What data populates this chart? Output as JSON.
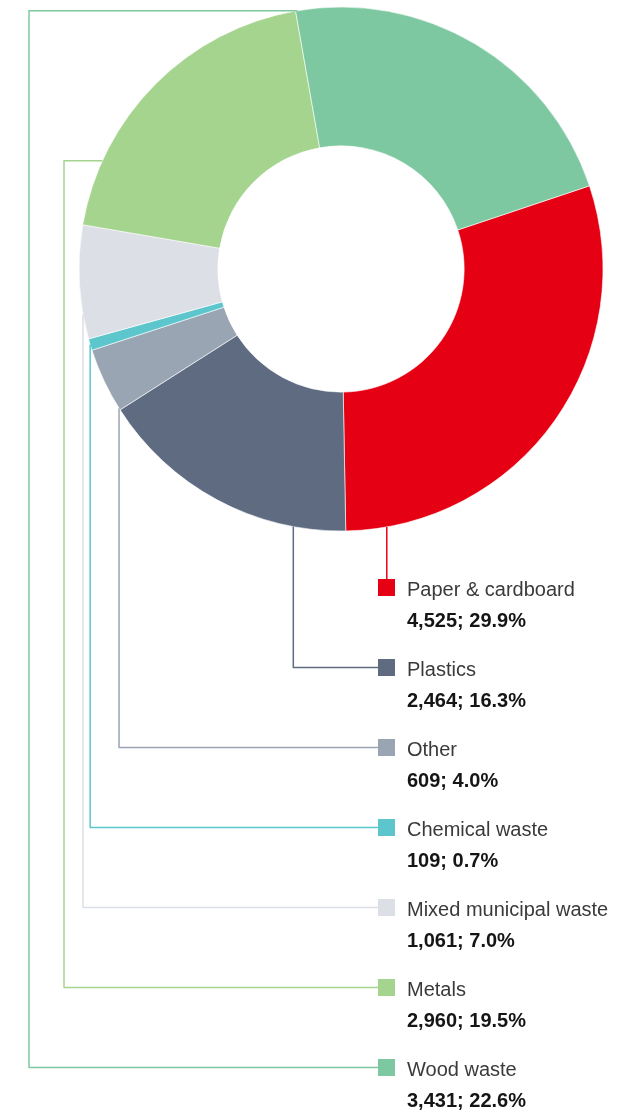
{
  "chart_data": {
    "type": "donut",
    "categories": [
      "Paper & cardboard",
      "Plastics",
      "Other",
      "Chemical waste",
      "Mixed municipal waste",
      "Metals",
      "Wood waste"
    ],
    "values": [
      4525,
      2464,
      609,
      109,
      1061,
      2960,
      3431
    ],
    "colors": [
      "#e50013",
      "#5e6b81",
      "#9aa5b4",
      "#5cc6cc",
      "#dcdfe6",
      "#a5d48f",
      "#7dc8a0"
    ],
    "value_labels": [
      "4,525; 29.9%",
      "2,464; 16.3%",
      "609; 4.0%",
      "109; 0.7%",
      "1,061; 7.0%",
      "2,960; 19.5%",
      "3,431; 22.6%"
    ],
    "legend": "bottom"
  }
}
